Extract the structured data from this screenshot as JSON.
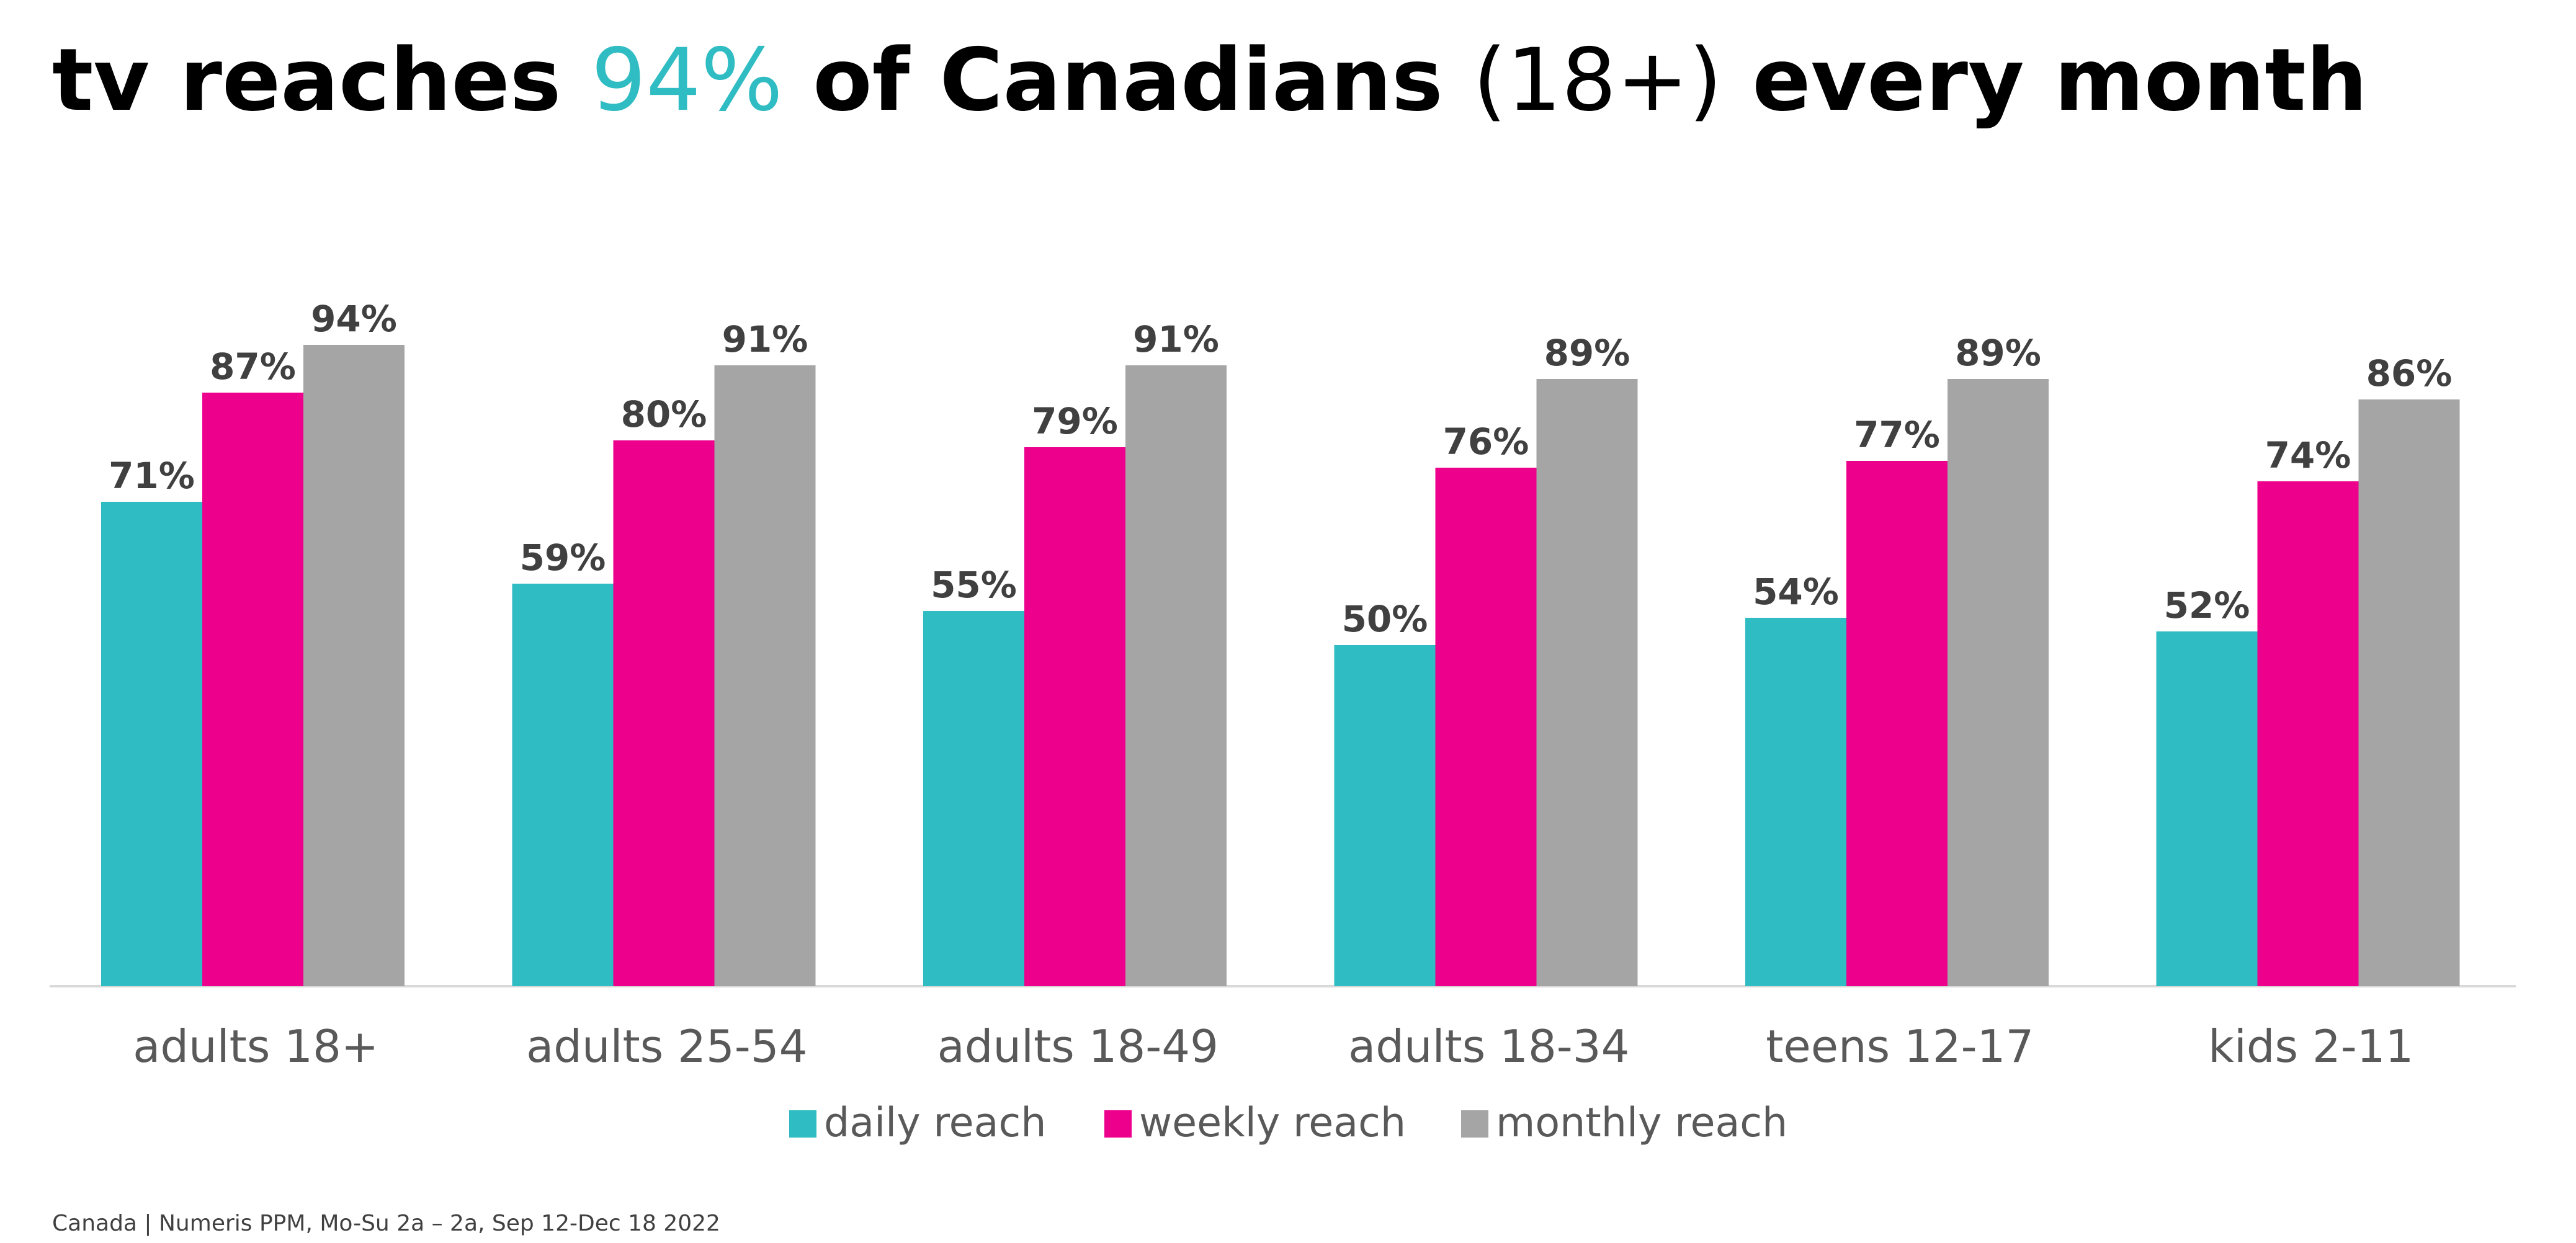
{
  "title": {
    "prefix": "tv reaches ",
    "highlight": "94%",
    "middle": " of Canadians ",
    "parenthetical": "(18+)",
    "suffix": " every month"
  },
  "source": "Canada | Numeris PPM, Mo-Su 2a – 2a, Sep 12-Dec 18 2022",
  "colors": {
    "daily": "#2FBCC2",
    "weekly": "#EC008C",
    "monthly": "#A5A5A5",
    "accent": "#2FBCC2",
    "axis": "#D9D9D9"
  },
  "chart_data": {
    "type": "bar",
    "categories": [
      "adults 18+",
      "adults 25-54",
      "adults 18-49",
      "adults 18-34",
      "teens 12-17",
      "kids 2-11"
    ],
    "series": [
      {
        "name": "daily reach",
        "values": [
          71,
          59,
          55,
          50,
          54,
          52
        ]
      },
      {
        "name": "weekly reach",
        "values": [
          87,
          80,
          79,
          76,
          77,
          74
        ]
      },
      {
        "name": "monthly reach",
        "values": [
          94,
          91,
          91,
          89,
          89,
          86
        ]
      }
    ],
    "value_suffix": "%",
    "ylim": [
      0,
      100
    ],
    "grid": false,
    "legend_position": "bottom",
    "data_labels": true
  }
}
